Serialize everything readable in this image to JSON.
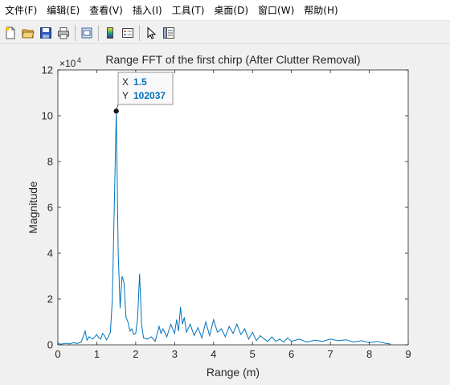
{
  "menu": {
    "items": [
      {
        "label": "文件(F)"
      },
      {
        "label": "编辑(E)"
      },
      {
        "label": "查看(V)"
      },
      {
        "label": "插入(I)"
      },
      {
        "label": "工具(T)"
      },
      {
        "label": "桌面(D)"
      },
      {
        "label": "窗口(W)"
      },
      {
        "label": "帮助(H)"
      }
    ]
  },
  "toolbar": {
    "buttons": [
      "new-file-icon",
      "open-folder-icon",
      "save-icon",
      "print-icon",
      "print-preview-icon",
      "colorbar-icon",
      "legend-icon",
      "pointer-icon",
      "property-editor-icon"
    ]
  },
  "colors": {
    "line": "#0072bd",
    "datatip_value": "#0072bd",
    "axes_bg": "#ffffff",
    "figure_bg": "#f0f0f0"
  },
  "chart_data": {
    "type": "line",
    "title": "Range FFT of the first chirp (After Clutter Removal)",
    "xlabel": "Range (m)",
    "ylabel": "Magnitude",
    "xlim": [
      0,
      9
    ],
    "ylim": [
      0,
      12
    ],
    "xticks": [
      "0",
      "1",
      "2",
      "3",
      "4",
      "5",
      "6",
      "7",
      "8",
      "9"
    ],
    "yticks": [
      "0",
      "2",
      "4",
      "6",
      "8",
      "10",
      "12"
    ],
    "y_exponent": "×10",
    "y_exponent_power": "4",
    "grid": false,
    "series": [
      {
        "x": [
          0.0,
          0.1,
          0.2,
          0.3,
          0.4,
          0.5,
          0.6,
          0.65,
          0.7,
          0.75,
          0.8,
          0.9,
          1.0,
          1.05,
          1.1,
          1.15,
          1.2,
          1.25,
          1.3,
          1.35,
          1.4,
          1.45,
          1.5,
          1.55,
          1.6,
          1.65,
          1.7,
          1.75,
          1.8,
          1.85,
          1.9,
          1.95,
          2.0,
          2.05,
          2.1,
          2.15,
          2.2,
          2.3,
          2.4,
          2.5,
          2.6,
          2.65,
          2.7,
          2.8,
          2.9,
          3.0,
          3.05,
          3.1,
          3.15,
          3.2,
          3.25,
          3.3,
          3.4,
          3.5,
          3.6,
          3.7,
          3.8,
          3.9,
          4.0,
          4.1,
          4.2,
          4.3,
          4.4,
          4.5,
          4.6,
          4.7,
          4.8,
          4.9,
          5.0,
          5.1,
          5.2,
          5.3,
          5.4,
          5.5,
          5.6,
          5.7,
          5.8,
          5.9,
          6.0,
          6.2,
          6.4,
          6.6,
          6.8,
          7.0,
          7.2,
          7.4,
          7.6,
          7.8,
          8.0,
          8.2,
          8.4,
          8.55
        ],
        "y": [
          500,
          300,
          700,
          400,
          900,
          600,
          1200,
          3500,
          6000,
          2000,
          3500,
          2500,
          4500,
          3000,
          2500,
          5000,
          4000,
          2200,
          3500,
          5500,
          20000,
          60000,
          102037,
          40000,
          16000,
          30000,
          27000,
          12000,
          10000,
          6000,
          7000,
          4500,
          5000,
          12000,
          31000,
          9000,
          3000,
          2500,
          3500,
          1500,
          8000,
          5000,
          7000,
          3500,
          9000,
          5000,
          11000,
          6000,
          16500,
          9000,
          12000,
          5500,
          9000,
          4000,
          7500,
          3000,
          10000,
          4000,
          11000,
          5500,
          7000,
          3500,
          8000,
          5000,
          9000,
          4500,
          7000,
          2500,
          5500,
          1800,
          4000,
          2500,
          1500,
          3500,
          1500,
          2500,
          1200,
          3000,
          1500,
          2500,
          1200,
          2000,
          1500,
          2500,
          1800,
          2200,
          1200,
          1800,
          900,
          1500,
          700,
          300
        ]
      }
    ],
    "datatip": {
      "x_label": "X",
      "x_value": "1.5",
      "y_label": "Y",
      "y_value": "102037",
      "x": 1.5,
      "y": 102037
    }
  }
}
